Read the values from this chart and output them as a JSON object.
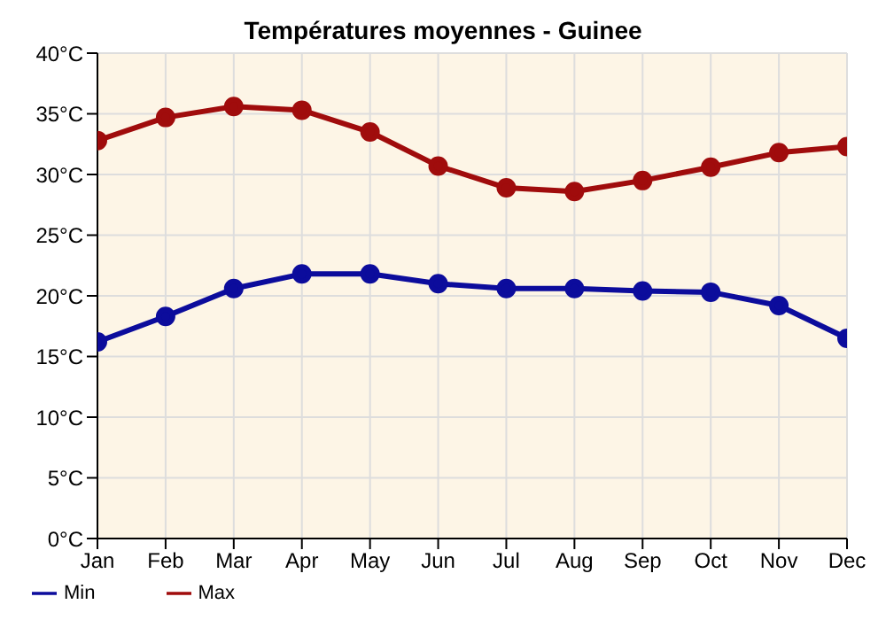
{
  "chart_data": {
    "type": "line",
    "title": "Températures moyennes - Guinee",
    "categories": [
      "Jan",
      "Feb",
      "Mar",
      "Apr",
      "May",
      "Jun",
      "Jul",
      "Aug",
      "Sep",
      "Oct",
      "Nov",
      "Dec"
    ],
    "series": [
      {
        "name": "Min",
        "color": "#0c0c9c",
        "values": [
          16.2,
          18.3,
          20.6,
          21.8,
          21.8,
          21.0,
          20.6,
          20.6,
          20.4,
          20.3,
          19.2,
          16.5
        ]
      },
      {
        "name": "Max",
        "color": "#a00c0c",
        "values": [
          32.8,
          34.7,
          35.6,
          35.3,
          33.5,
          30.7,
          28.9,
          28.6,
          29.5,
          30.6,
          31.8,
          32.3
        ]
      }
    ],
    "ylim": [
      0,
      40
    ],
    "yticks": [
      {
        "value": 0,
        "label": "0°C"
      },
      {
        "value": 5,
        "label": "5°C"
      },
      {
        "value": 10,
        "label": "10°C"
      },
      {
        "value": 15,
        "label": "15°C"
      },
      {
        "value": 20,
        "label": "20°C"
      },
      {
        "value": 25,
        "label": "25°C"
      },
      {
        "value": 30,
        "label": "30°C"
      },
      {
        "value": 35,
        "label": "35°C"
      },
      {
        "value": 40,
        "label": "40°C"
      }
    ],
    "grid": true,
    "legend": "bottom left",
    "marker": "circle",
    "line_style": "solid"
  }
}
